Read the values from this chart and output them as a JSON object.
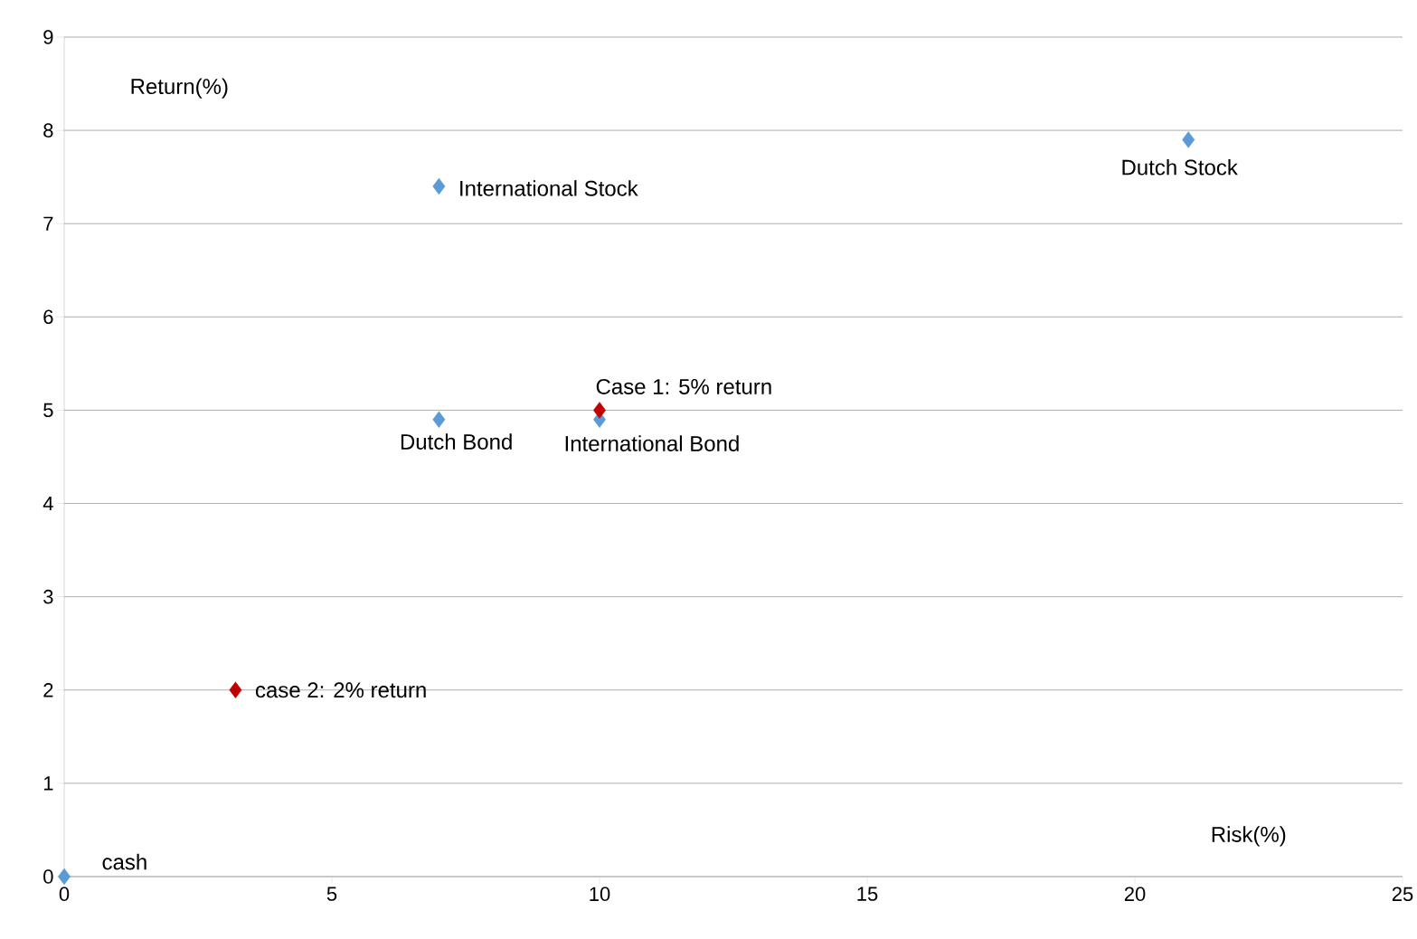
{
  "chart_data": {
    "type": "scatter",
    "xlabel": "Risk(%)",
    "ylabel": "Return(%)",
    "series": [
      {
        "color": "#5b9bd5",
        "x": [
          0,
          7,
          7,
          10,
          21
        ],
        "values": [
          0,
          4.9,
          7.4,
          4.9,
          7.9
        ]
      },
      {
        "color": "#c00000",
        "x": [
          10,
          3.2
        ],
        "values": [
          5,
          2
        ]
      }
    ],
    "annotations": [
      {
        "text": "International  Stock",
        "x": 7,
        "y": 7.4
      },
      {
        "text": "Dutch Stock",
        "x": 21,
        "y": 7.9
      },
      {
        "text": "Case 1: 5% return",
        "x": 10,
        "y": 5
      },
      {
        "text": "Dutch Bond",
        "x": 7,
        "y": 4.9
      },
      {
        "text": "International Bond",
        "x": 10,
        "y": 4.9
      },
      {
        "text": "case 2: 2% return",
        "x": 3.2,
        "y": 2
      },
      {
        "text": "cash",
        "x": 0,
        "y": 0
      }
    ],
    "xlim": [
      0,
      25
    ],
    "ylim": [
      0,
      9
    ],
    "xticks": [
      0,
      5,
      10,
      15,
      20,
      25
    ],
    "yticks": [
      0,
      1,
      2,
      3,
      4,
      5,
      6,
      7,
      8,
      9
    ],
    "grid": "y",
    "marker": "diamond"
  }
}
